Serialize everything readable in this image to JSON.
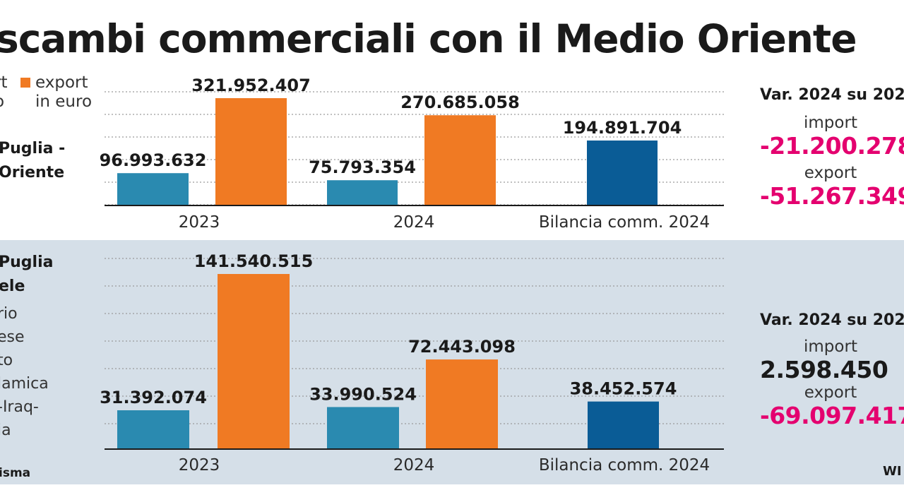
{
  "title": "scambi commerciali con il Medio Oriente",
  "legend": {
    "import_label_lines": [
      "rt",
      "o"
    ],
    "export_label_lines": [
      "export",
      "in euro"
    ]
  },
  "colors": {
    "import": "#2a8ab0",
    "export": "#f07a23",
    "balance": "#0a5c96",
    "negative": "#e4006f",
    "positive": "#1a1a1a",
    "panel_bg": "#d5dfe8"
  },
  "section_top": {
    "label_lines": [
      "Puglia -",
      "Oriente"
    ],
    "sub_lines": []
  },
  "section_bottom": {
    "label_lines": [
      "Puglia",
      "ele"
    ],
    "sub_lines": [
      "rio",
      "ese",
      "to",
      "lamica",
      "-Iraq-",
      "ia"
    ]
  },
  "source": "isma",
  "brand": "WI",
  "var_top": {
    "title": "Var. 2024 su 202",
    "import_label": "import",
    "import_value": "-21.200.278",
    "export_label": "export",
    "export_value": "-51.267.349"
  },
  "var_bottom": {
    "title": "Var. 2024 su 202",
    "import_label": "import",
    "import_value": "2.598.450",
    "export_label": "export",
    "export_value": "-69.097.417"
  },
  "chart_data": [
    {
      "type": "bar",
      "categories": [
        "2023",
        "2024",
        "Bilancia comm. 2024"
      ],
      "series": [
        {
          "name": "import",
          "values": [
            96993632,
            75793354,
            null
          ]
        },
        {
          "name": "export",
          "values": [
            321952407,
            270685058,
            null
          ]
        },
        {
          "values": [
            null,
            null,
            194891704
          ]
        }
      ],
      "labels": [
        [
          "96.993.632",
          "75.793.354",
          ""
        ],
        [
          "321.952.407",
          "270.685.058",
          ""
        ],
        [
          "",
          "",
          "194.891.704"
        ]
      ],
      "grid": true,
      "ylim": [
        0,
        350000000
      ]
    },
    {
      "type": "bar",
      "categories": [
        "2023",
        "2024",
        "Bilancia comm. 2024"
      ],
      "series": [
        {
          "name": "import",
          "values": [
            31392074,
            33990524,
            null
          ]
        },
        {
          "name": "export",
          "values": [
            141540515,
            72443098,
            null
          ]
        },
        {
          "values": [
            null,
            null,
            38452574
          ]
        }
      ],
      "labels": [
        [
          "31.392.074",
          "33.990.524",
          ""
        ],
        [
          "141.540.515",
          "72.443.098",
          ""
        ],
        [
          "",
          "",
          "38.452.574"
        ]
      ],
      "grid": true,
      "ylim": [
        0,
        150000000
      ]
    }
  ]
}
